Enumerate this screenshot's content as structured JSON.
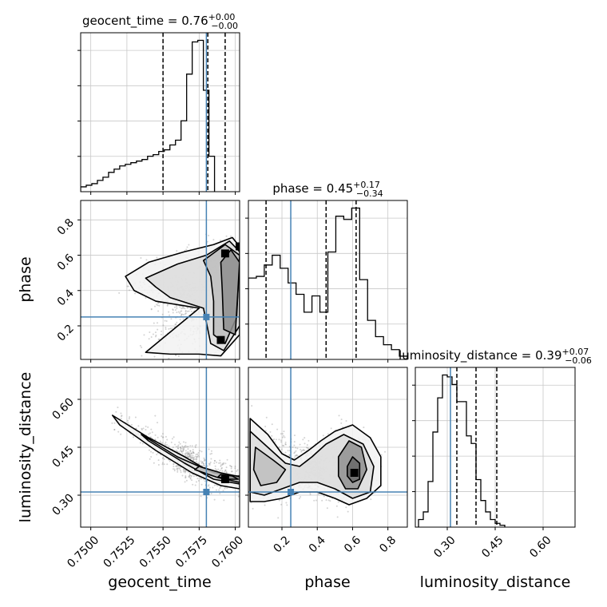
{
  "chart_data": {
    "type": "corner",
    "parameters": [
      {
        "name": "geocent_time",
        "xlabel": "geocent_time",
        "title_prefix": "geocent_time = 0.76",
        "title_plus": "+0.00",
        "title_minus": "−0.00",
        "range": [
          0.7493,
          0.7603
        ],
        "ticks": [
          0.75,
          0.7525,
          0.755,
          0.7575,
          0.76
        ],
        "tick_labels": [
          "0.7500",
          "0.7525",
          "0.7550",
          "0.7575",
          "0.7600"
        ],
        "quantiles": [
          0.755,
          0.7581,
          0.7593
        ],
        "truth": 0.758,
        "hist_start": 0.7493,
        "hist_step": 0.000386,
        "hist_counts": [
          3,
          4,
          5,
          7,
          9,
          12,
          14,
          16,
          17,
          18,
          19,
          20,
          22,
          23,
          25,
          26,
          29,
          32,
          44,
          73,
          93,
          94,
          63,
          22
        ]
      },
      {
        "name": "phase",
        "xlabel": "phase",
        "ylabel": "phase",
        "title_prefix": "phase = 0.45",
        "title_plus": "+0.17",
        "title_minus": "−0.34",
        "range": [
          0.01,
          0.91
        ],
        "ticks": [
          0.2,
          0.4,
          0.6,
          0.8
        ],
        "tick_labels": [
          "0.2",
          "0.4",
          "0.6",
          "0.8"
        ],
        "quantiles": [
          0.11,
          0.45,
          0.62
        ],
        "truth": 0.25,
        "hist_start": 0.01,
        "hist_step": 0.045,
        "hist_counts": [
          50,
          51,
          58,
          64,
          56,
          47,
          40,
          29,
          39,
          29,
          66,
          88,
          86,
          93,
          49,
          24,
          14,
          9,
          6,
          2
        ]
      },
      {
        "name": "luminosity_distance",
        "xlabel": "luminosity_distance",
        "ylabel": "luminosity_distance",
        "title_prefix": "luminosity_distance = 0.39",
        "title_plus": "+0.07",
        "title_minus": "−0.06",
        "range": [
          0.2,
          0.7
        ],
        "ticks": [
          0.3,
          0.45,
          0.6
        ],
        "tick_labels": [
          "0.30",
          "0.45",
          "0.60"
        ],
        "quantiles": [
          0.33,
          0.39,
          0.455
        ],
        "truth": 0.31,
        "hist_start": 0.21,
        "hist_step": 0.015,
        "hist_counts": [
          4,
          8,
          24,
          50,
          68,
          80,
          79,
          75,
          66,
          66,
          48,
          44,
          25,
          14,
          8,
          4,
          2,
          1
        ]
      }
    ],
    "contours_2d": [
      {
        "x_param": "geocent_time",
        "y_param": "phase",
        "contours": [
          [
            [
              0.7524,
              0.48
            ],
            [
              0.754,
              0.56
            ],
            [
              0.7565,
              0.62
            ],
            [
              0.7585,
              0.66
            ],
            [
              0.7598,
              0.7
            ],
            [
              0.7603,
              0.65
            ],
            [
              0.7603,
              0.15
            ],
            [
              0.759,
              0.03
            ],
            [
              0.7575,
              0.04
            ],
            [
              0.7555,
              0.04
            ],
            [
              0.7538,
              0.05
            ],
            [
              0.7575,
              0.3
            ],
            [
              0.7545,
              0.34
            ],
            [
              0.753,
              0.4
            ]
          ],
          [
            [
              0.7538,
              0.47
            ],
            [
              0.756,
              0.55
            ],
            [
              0.758,
              0.6
            ],
            [
              0.7596,
              0.68
            ],
            [
              0.7603,
              0.62
            ],
            [
              0.7603,
              0.2
            ],
            [
              0.7592,
              0.06
            ],
            [
              0.7583,
              0.1
            ],
            [
              0.7578,
              0.3
            ],
            [
              0.7555,
              0.36
            ],
            [
              0.7545,
              0.42
            ]
          ],
          [
            [
              0.7578,
              0.57
            ],
            [
              0.7593,
              0.66
            ],
            [
              0.7603,
              0.6
            ],
            [
              0.7601,
              0.25
            ],
            [
              0.7593,
              0.1
            ],
            [
              0.7585,
              0.15
            ],
            [
              0.7585,
              0.34
            ],
            [
              0.7583,
              0.48
            ]
          ],
          [
            [
              0.759,
              0.56
            ],
            [
              0.7597,
              0.63
            ],
            [
              0.7603,
              0.56
            ],
            [
              0.76,
              0.15
            ],
            [
              0.7592,
              0.18
            ],
            [
              0.7591,
              0.4
            ]
          ]
        ],
        "dense_bins": [
          [
            0.7593,
            0.61
          ],
          [
            0.7603,
            0.65
          ],
          [
            0.759,
            0.12
          ]
        ]
      },
      {
        "x_param": "geocent_time",
        "y_param": "luminosity_distance",
        "contours": [
          [
            [
              0.7515,
              0.55
            ],
            [
              0.754,
              0.48
            ],
            [
              0.7565,
              0.42
            ],
            [
              0.758,
              0.38
            ],
            [
              0.7595,
              0.36
            ],
            [
              0.7603,
              0.36
            ],
            [
              0.7603,
              0.32
            ],
            [
              0.759,
              0.33
            ],
            [
              0.757,
              0.37
            ],
            [
              0.7545,
              0.44
            ],
            [
              0.752,
              0.52
            ]
          ],
          [
            [
              0.7535,
              0.49
            ],
            [
              0.756,
              0.42
            ],
            [
              0.7585,
              0.37
            ],
            [
              0.7603,
              0.355
            ],
            [
              0.7603,
              0.335
            ],
            [
              0.7585,
              0.35
            ],
            [
              0.7565,
              0.4
            ],
            [
              0.754,
              0.47
            ]
          ],
          [
            [
              0.7575,
              0.39
            ],
            [
              0.759,
              0.37
            ],
            [
              0.7603,
              0.358
            ],
            [
              0.7603,
              0.34
            ],
            [
              0.7588,
              0.355
            ],
            [
              0.7572,
              0.38
            ]
          ],
          [
            [
              0.759,
              0.365
            ],
            [
              0.7598,
              0.36
            ],
            [
              0.7602,
              0.35
            ],
            [
              0.7595,
              0.35
            ],
            [
              0.7588,
              0.357
            ]
          ]
        ],
        "dense_bins": [
          [
            0.7593,
            0.35
          ]
        ]
      },
      {
        "x_param": "phase",
        "y_param": "luminosity_distance",
        "contours": [
          [
            [
              0.02,
              0.54
            ],
            [
              0.12,
              0.49
            ],
            [
              0.2,
              0.43
            ],
            [
              0.27,
              0.41
            ],
            [
              0.35,
              0.44
            ],
            [
              0.42,
              0.47
            ],
            [
              0.5,
              0.5
            ],
            [
              0.6,
              0.52
            ],
            [
              0.7,
              0.48
            ],
            [
              0.76,
              0.42
            ],
            [
              0.76,
              0.33
            ],
            [
              0.68,
              0.29
            ],
            [
              0.58,
              0.27
            ],
            [
              0.5,
              0.29
            ],
            [
              0.4,
              0.31
            ],
            [
              0.3,
              0.31
            ],
            [
              0.2,
              0.29
            ],
            [
              0.1,
              0.28
            ],
            [
              0.02,
              0.28
            ]
          ],
          [
            [
              0.02,
              0.5
            ],
            [
              0.12,
              0.45
            ],
            [
              0.22,
              0.4
            ],
            [
              0.3,
              0.39
            ],
            [
              0.37,
              0.42
            ],
            [
              0.45,
              0.46
            ],
            [
              0.55,
              0.49
            ],
            [
              0.66,
              0.46
            ],
            [
              0.72,
              0.39
            ],
            [
              0.7,
              0.31
            ],
            [
              0.6,
              0.29
            ],
            [
              0.5,
              0.32
            ],
            [
              0.4,
              0.34
            ],
            [
              0.3,
              0.34
            ],
            [
              0.2,
              0.32
            ],
            [
              0.1,
              0.3
            ],
            [
              0.02,
              0.31
            ]
          ],
          [
            [
              0.05,
              0.45
            ],
            [
              0.15,
              0.41
            ],
            [
              0.22,
              0.38
            ],
            [
              0.17,
              0.34
            ],
            [
              0.08,
              0.33
            ],
            [
              0.04,
              0.38
            ]
          ],
          [
            [
              0.52,
              0.42
            ],
            [
              0.58,
              0.47
            ],
            [
              0.65,
              0.45
            ],
            [
              0.68,
              0.38
            ],
            [
              0.63,
              0.32
            ],
            [
              0.56,
              0.32
            ],
            [
              0.52,
              0.36
            ]
          ],
          [
            [
              0.57,
              0.39
            ],
            [
              0.6,
              0.42
            ],
            [
              0.64,
              0.4
            ],
            [
              0.64,
              0.35
            ],
            [
              0.6,
              0.34
            ],
            [
              0.57,
              0.36
            ]
          ]
        ],
        "dense_bins": [
          [
            0.61,
            0.37
          ]
        ]
      }
    ],
    "styles": {
      "truth_color": "#4682b4",
      "hist_color": "#000000",
      "grid_color": "#c8c8c8",
      "scatter_color": "#808080",
      "contour_color": "#000000"
    }
  }
}
